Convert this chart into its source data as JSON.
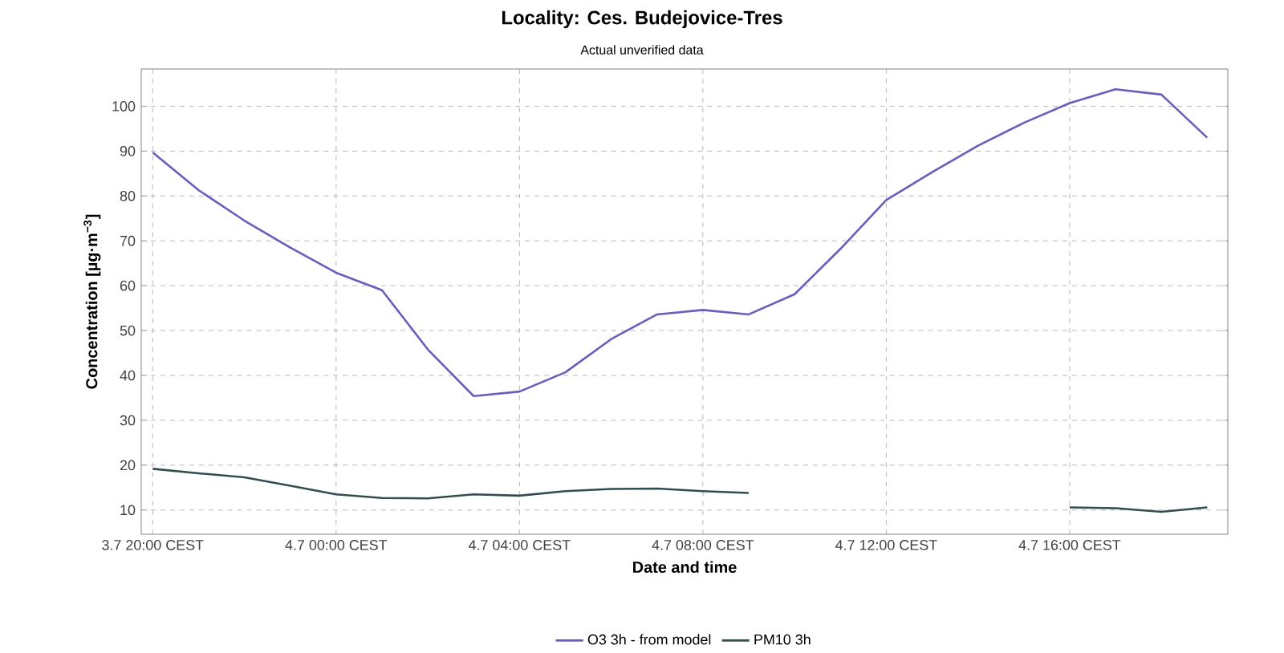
{
  "chart_data": {
    "type": "line",
    "title": "Locality: Ces. Budejovice-Tres",
    "subtitle": "Actual unverified data",
    "xlabel": "Date and time",
    "ylabel": "Concentration [µg·m$^{−3}$]",
    "categories": [
      "3.7 20:00 CEST",
      null,
      null,
      null,
      "4.7 00:00 CEST",
      null,
      null,
      null,
      "4.7 04:00 CEST",
      null,
      null,
      null,
      "4.7 08:00 CEST",
      null,
      null,
      null,
      "4.7 12:00 CEST",
      null,
      null,
      null,
      "4.7 16:00 CEST",
      null,
      null,
      null
    ],
    "series": [
      {
        "name": "O3 3h - from model",
        "color": "#6a5acd",
        "values": [
          89.7,
          81.3,
          74.5,
          68.5,
          62.9,
          59.0,
          45.8,
          35.4,
          36.4,
          40.7,
          48.1,
          53.6,
          54.6,
          53.6,
          58.1,
          68.2,
          79.1,
          85.3,
          91.2,
          96.3,
          100.7,
          103.8,
          102.6,
          93.0
        ]
      },
      {
        "name": "PM10 3h",
        "color": "#2f4f4f",
        "values": [
          19.2,
          18.2,
          17.3,
          15.4,
          13.5,
          12.7,
          12.6,
          13.5,
          13.2,
          14.2,
          14.7,
          14.8,
          14.2,
          13.8,
          null,
          null,
          null,
          null,
          null,
          null,
          10.6,
          10.4,
          9.6,
          10.6
        ]
      }
    ],
    "ylim": [
      4.6,
      108.3
    ],
    "yticks": [
      10,
      20,
      30,
      40,
      50,
      60,
      70,
      80,
      90,
      100
    ],
    "grid": true,
    "legend": "bottom",
    "marker": "none",
    "line_style": "solid"
  }
}
